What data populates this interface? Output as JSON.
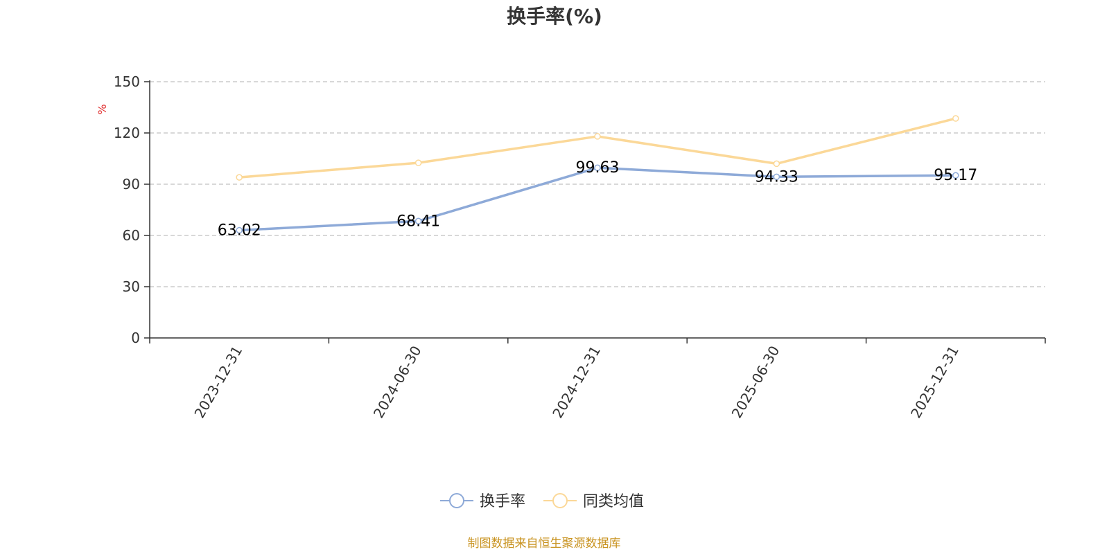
{
  "chart_data": {
    "type": "line",
    "title": "换手率(%)",
    "ylabel": "%",
    "categories": [
      "2023-12-31",
      "2024-06-30",
      "2024-12-31",
      "2025-06-30",
      "2025-12-31"
    ],
    "ylim": [
      0,
      150
    ],
    "yticks": [
      0,
      30,
      60,
      90,
      120,
      150
    ],
    "grid": true,
    "legend_position": "bottom",
    "series": [
      {
        "name": "换手率",
        "values": [
          63.02,
          68.41,
          99.63,
          94.33,
          95.17
        ],
        "color": "#8eaad8",
        "show_labels": true
      },
      {
        "name": "同类均值",
        "values": [
          94.0,
          102.5,
          118.0,
          102.0,
          128.5
        ],
        "color": "#fbd898",
        "show_labels": false
      }
    ]
  },
  "source": "制图数据来自恒生聚源数据库"
}
